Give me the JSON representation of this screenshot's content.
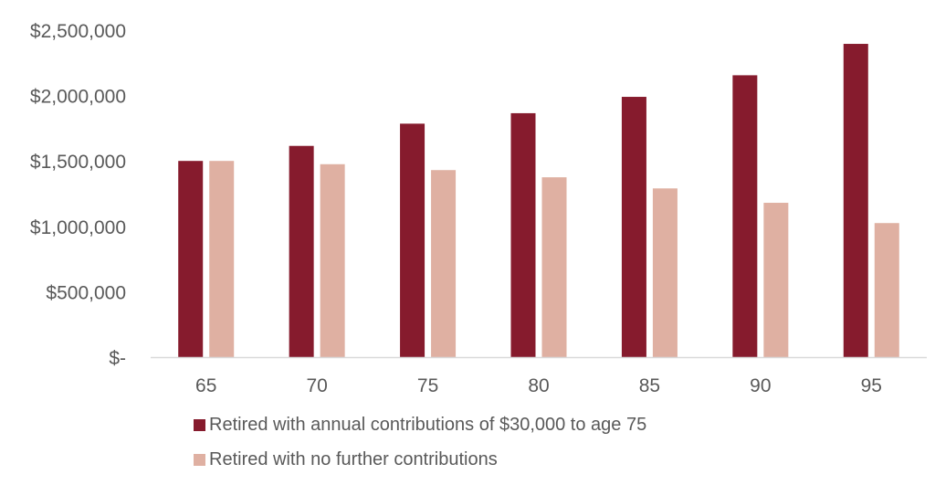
{
  "chart_data": {
    "type": "bar",
    "title": "",
    "xlabel": "",
    "ylabel": "",
    "categories": [
      "65",
      "70",
      "75",
      "80",
      "85",
      "90",
      "95"
    ],
    "series": [
      {
        "name": "Retired with annual contributions of $30,000 to age 75",
        "color": "#861b2d",
        "values": [
          1500000,
          1615000,
          1785000,
          1865000,
          1990000,
          2155000,
          2395000
        ]
      },
      {
        "name": "Retired with no further contributions",
        "color": "#dfb0a2",
        "values": [
          1500000,
          1475000,
          1430000,
          1375000,
          1290000,
          1180000,
          1025000
        ]
      }
    ],
    "ylim": [
      0,
      2500000
    ],
    "yticks": [
      0,
      500000,
      1000000,
      1500000,
      2000000,
      2500000
    ],
    "ytick_labels": [
      "$-",
      "$500,000",
      "$1,000,000",
      "$1,500,000",
      "$2,000,000",
      "$2,500,000"
    ],
    "grid": false,
    "legend_position": "bottom"
  }
}
